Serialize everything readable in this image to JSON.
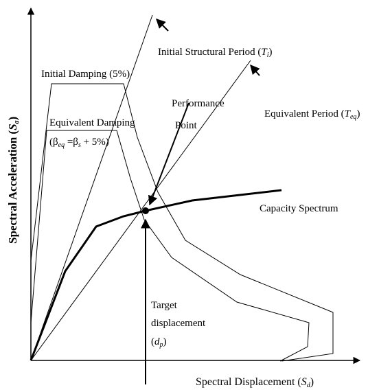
{
  "initial_period": {
    "text": "Initial Structural Period (",
    "symbol": "T",
    "subscript": "i",
    "close": ")"
  },
  "initial_damping": "Initial Damping (5%)",
  "performance_point": [
    "Performance",
    "Point"
  ],
  "equivalent_damping": {
    "line1": "Equivalent Damping",
    "open": "(β",
    "sub1": "eq",
    "mid": " =β",
    "sub2": "s",
    "close": " + 5%)"
  },
  "equivalent_period": {
    "text": "Equivalent Period (",
    "symbol": "T",
    "subscript": "eq",
    "close": ")"
  },
  "capacity_spectrum": "Capacity Spectrum",
  "target_displacement": {
    "line1": "Target",
    "line2": "displacement",
    "open": "(",
    "symbol": "d",
    "subscript": "p",
    "close": ")"
  },
  "x_axis": {
    "text": "Spectral Displacement (",
    "symbol": "S",
    "subscript": "d",
    "close": ")"
  },
  "y_axis": {
    "text": "Spectral Acceleration (",
    "symbol": "S",
    "subscript": "a",
    "close": ")"
  }
}
